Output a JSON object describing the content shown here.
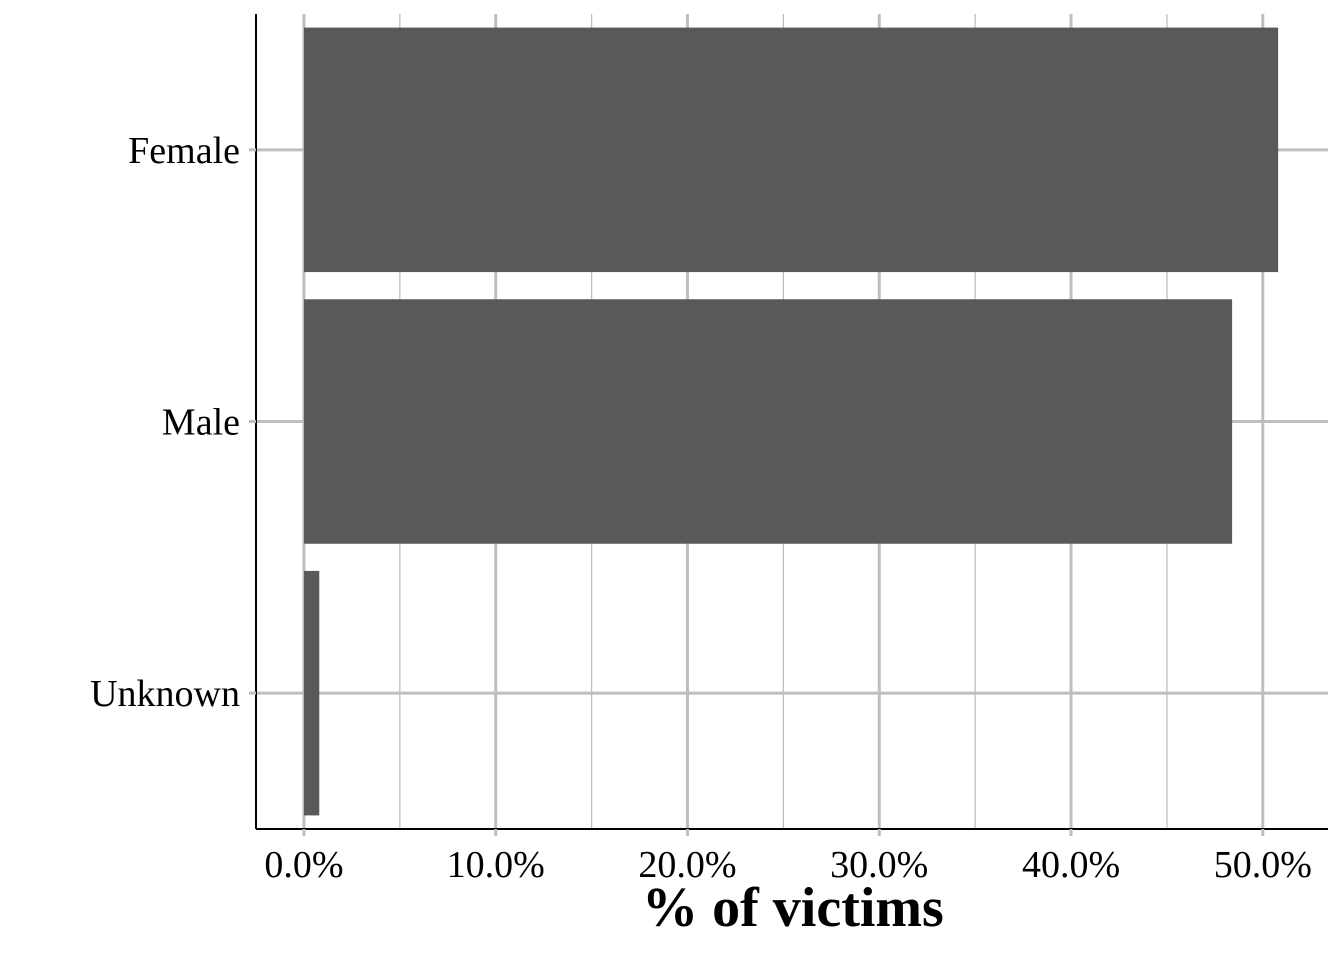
{
  "chart_data": {
    "type": "bar",
    "orientation": "horizontal",
    "categories": [
      "Female",
      "Male",
      "Unknown"
    ],
    "values": [
      50.8,
      48.4,
      0.8
    ],
    "xlabel": "% of victims",
    "ylabel": "",
    "xlim": [
      -2.5,
      53.4
    ],
    "x_ticks": [
      0,
      10,
      20,
      30,
      40,
      50
    ],
    "x_tick_labels": [
      "0.0%",
      "10.0%",
      "20.0%",
      "30.0%",
      "40.0%",
      "50.0%"
    ],
    "grid": true,
    "legend": "none",
    "colors": {
      "bar": "#595959",
      "grid": "#bebebe",
      "axis": "#000000",
      "background": "#ffffff"
    }
  }
}
